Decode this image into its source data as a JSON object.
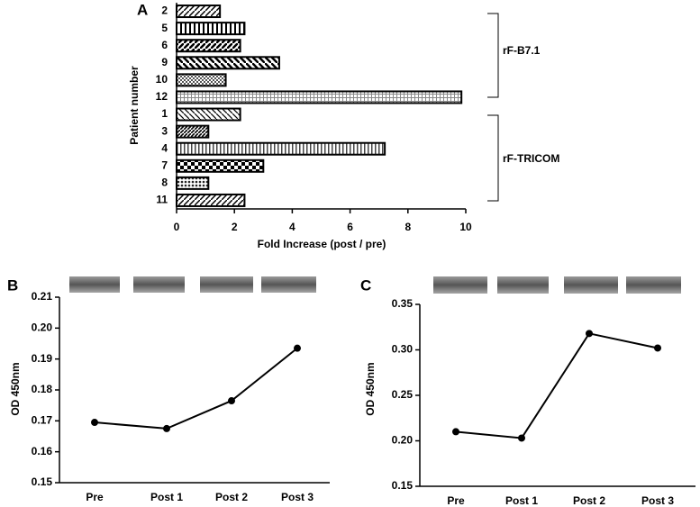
{
  "chart_data": [
    {
      "type": "hbar",
      "panel_label": "A",
      "x_label": "Fold Increase (post / pre)",
      "y_label": "Patient number",
      "categories": [
        "2",
        "5",
        "6",
        "9",
        "10",
        "12",
        "1",
        "3",
        "4",
        "7",
        "8",
        "11"
      ],
      "values": [
        1.5,
        2.35,
        2.2,
        3.55,
        1.7,
        9.85,
        2.2,
        1.1,
        7.2,
        3.0,
        1.1,
        2.35
      ],
      "xlim": [
        0,
        10
      ],
      "xticks": [
        0,
        2,
        4,
        6,
        8,
        10
      ],
      "annotations": [
        "rF-B7.1",
        "rF-TRICOM"
      ]
    },
    {
      "type": "line",
      "panel_label": "B",
      "y_label": "OD 450nm",
      "color": "#000000",
      "categories": [
        "Pre",
        "Post 1",
        "Post 2",
        "Post 3"
      ],
      "values": [
        0.1695,
        0.1675,
        0.1765,
        0.1935
      ],
      "ylim": [
        0.15,
        0.21
      ],
      "yticks": [
        0.15,
        0.16,
        0.17,
        0.18,
        0.19,
        {
          "value": 0.2,
          "label": "0.20"
        },
        0.21
      ]
    },
    {
      "type": "line",
      "panel_label": "C",
      "y_label": "OD 450nm",
      "color": "#000000",
      "categories": [
        "Pre",
        "Post 1",
        "Post 2",
        "Post 3"
      ],
      "values": [
        0.21,
        0.203,
        0.318,
        0.302
      ],
      "ylim": [
        0.15,
        0.35
      ],
      "yticks": [
        0.15,
        {
          "value": 0.2,
          "label": "0.20"
        },
        0.25,
        {
          "value": 0.3,
          "label": "0.30"
        },
        0.35
      ]
    }
  ]
}
